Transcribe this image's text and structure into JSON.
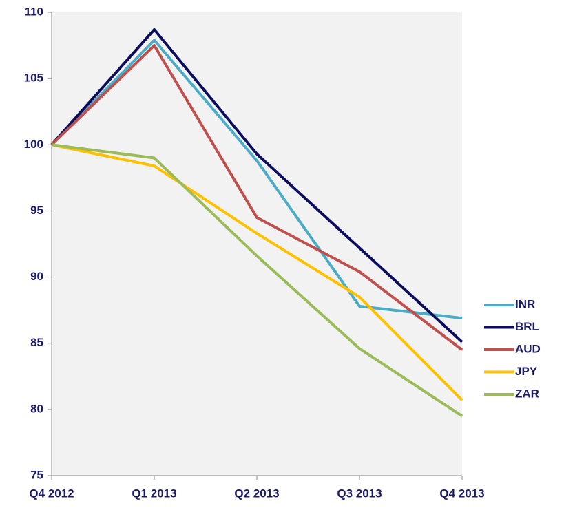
{
  "chart_data": {
    "type": "line",
    "categories": [
      "Q4 2012",
      "Q1 2013",
      "Q2 2013",
      "Q3 2013",
      "Q4 2013"
    ],
    "series": [
      {
        "name": "INR",
        "color": "#4bacc6",
        "values": [
          100,
          107.9,
          98.8,
          87.8,
          86.9
        ]
      },
      {
        "name": "BRL",
        "color": "#0d0d5e",
        "values": [
          100,
          108.7,
          99.3,
          92.2,
          85.1
        ]
      },
      {
        "name": "AUD",
        "color": "#c0504d",
        "values": [
          100,
          107.5,
          94.5,
          90.4,
          84.5
        ]
      },
      {
        "name": "JPY",
        "color": "#ffc000",
        "values": [
          100,
          98.4,
          93.3,
          88.5,
          80.7
        ]
      },
      {
        "name": "ZAR",
        "color": "#9bbb59",
        "values": [
          100,
          99.0,
          91.6,
          84.6,
          79.5
        ]
      }
    ],
    "ylim": [
      75,
      110
    ],
    "yticks": [
      75,
      80,
      85,
      90,
      95,
      100,
      105,
      110
    ],
    "legend": "right"
  }
}
